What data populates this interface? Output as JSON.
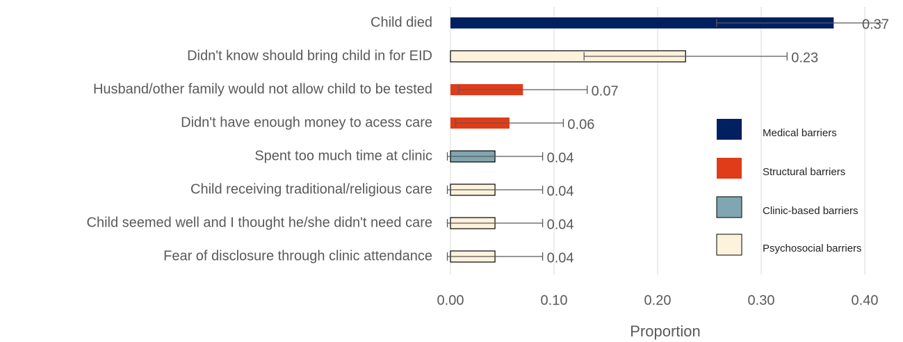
{
  "chart_data": {
    "type": "bar",
    "orientation": "horizontal",
    "categories": [
      "Child died",
      "Didn't know should bring child in for EID",
      "Husband/other family would not allow child to be tested",
      "Didn't have enough money to acess care",
      "Spent too much time at clinic",
      "Child receiving traditional/religious care",
      "Child seemed well and I thought he/she didn't need care",
      "Fear of disclosure through clinic attendance"
    ],
    "values": [
      0.37,
      0.227,
      0.07,
      0.057,
      0.043,
      0.043,
      0.043,
      0.043
    ],
    "value_labels": [
      "0.37",
      "0.23",
      "0.07",
      "0.06",
      "0.04",
      "0.04",
      "0.04",
      "0.04"
    ],
    "errors": [
      0.113,
      0.098,
      0.062,
      0.052,
      0.046,
      0.046,
      0.046,
      0.046
    ],
    "colors": [
      "#002060",
      "#fdf2dc",
      "#e03c1a",
      "#e03c1a",
      "#7fa6b1",
      "#fdf2dc",
      "#fdf2dc",
      "#fdf2dc"
    ],
    "legend": [
      {
        "name": "Medical barriers",
        "color": "#002060"
      },
      {
        "name": "Structural barriers",
        "color": "#e03c1a"
      },
      {
        "name": "Clinic-based barriers",
        "color": "#7fa6b1"
      },
      {
        "name": "Psychosocial barriers",
        "color": "#fdf2dc"
      }
    ],
    "xlabel": "Proportion",
    "xlim": [
      0,
      0.42
    ],
    "xticks": [
      {
        "value": 0,
        "label": "0.00"
      },
      {
        "value": 0.1,
        "label": "0.10"
      },
      {
        "value": 0.2,
        "label": "0.20"
      },
      {
        "value": 0.3,
        "label": "0.30"
      },
      {
        "value": 0.4,
        "label": "0.40"
      }
    ],
    "grid": true
  }
}
